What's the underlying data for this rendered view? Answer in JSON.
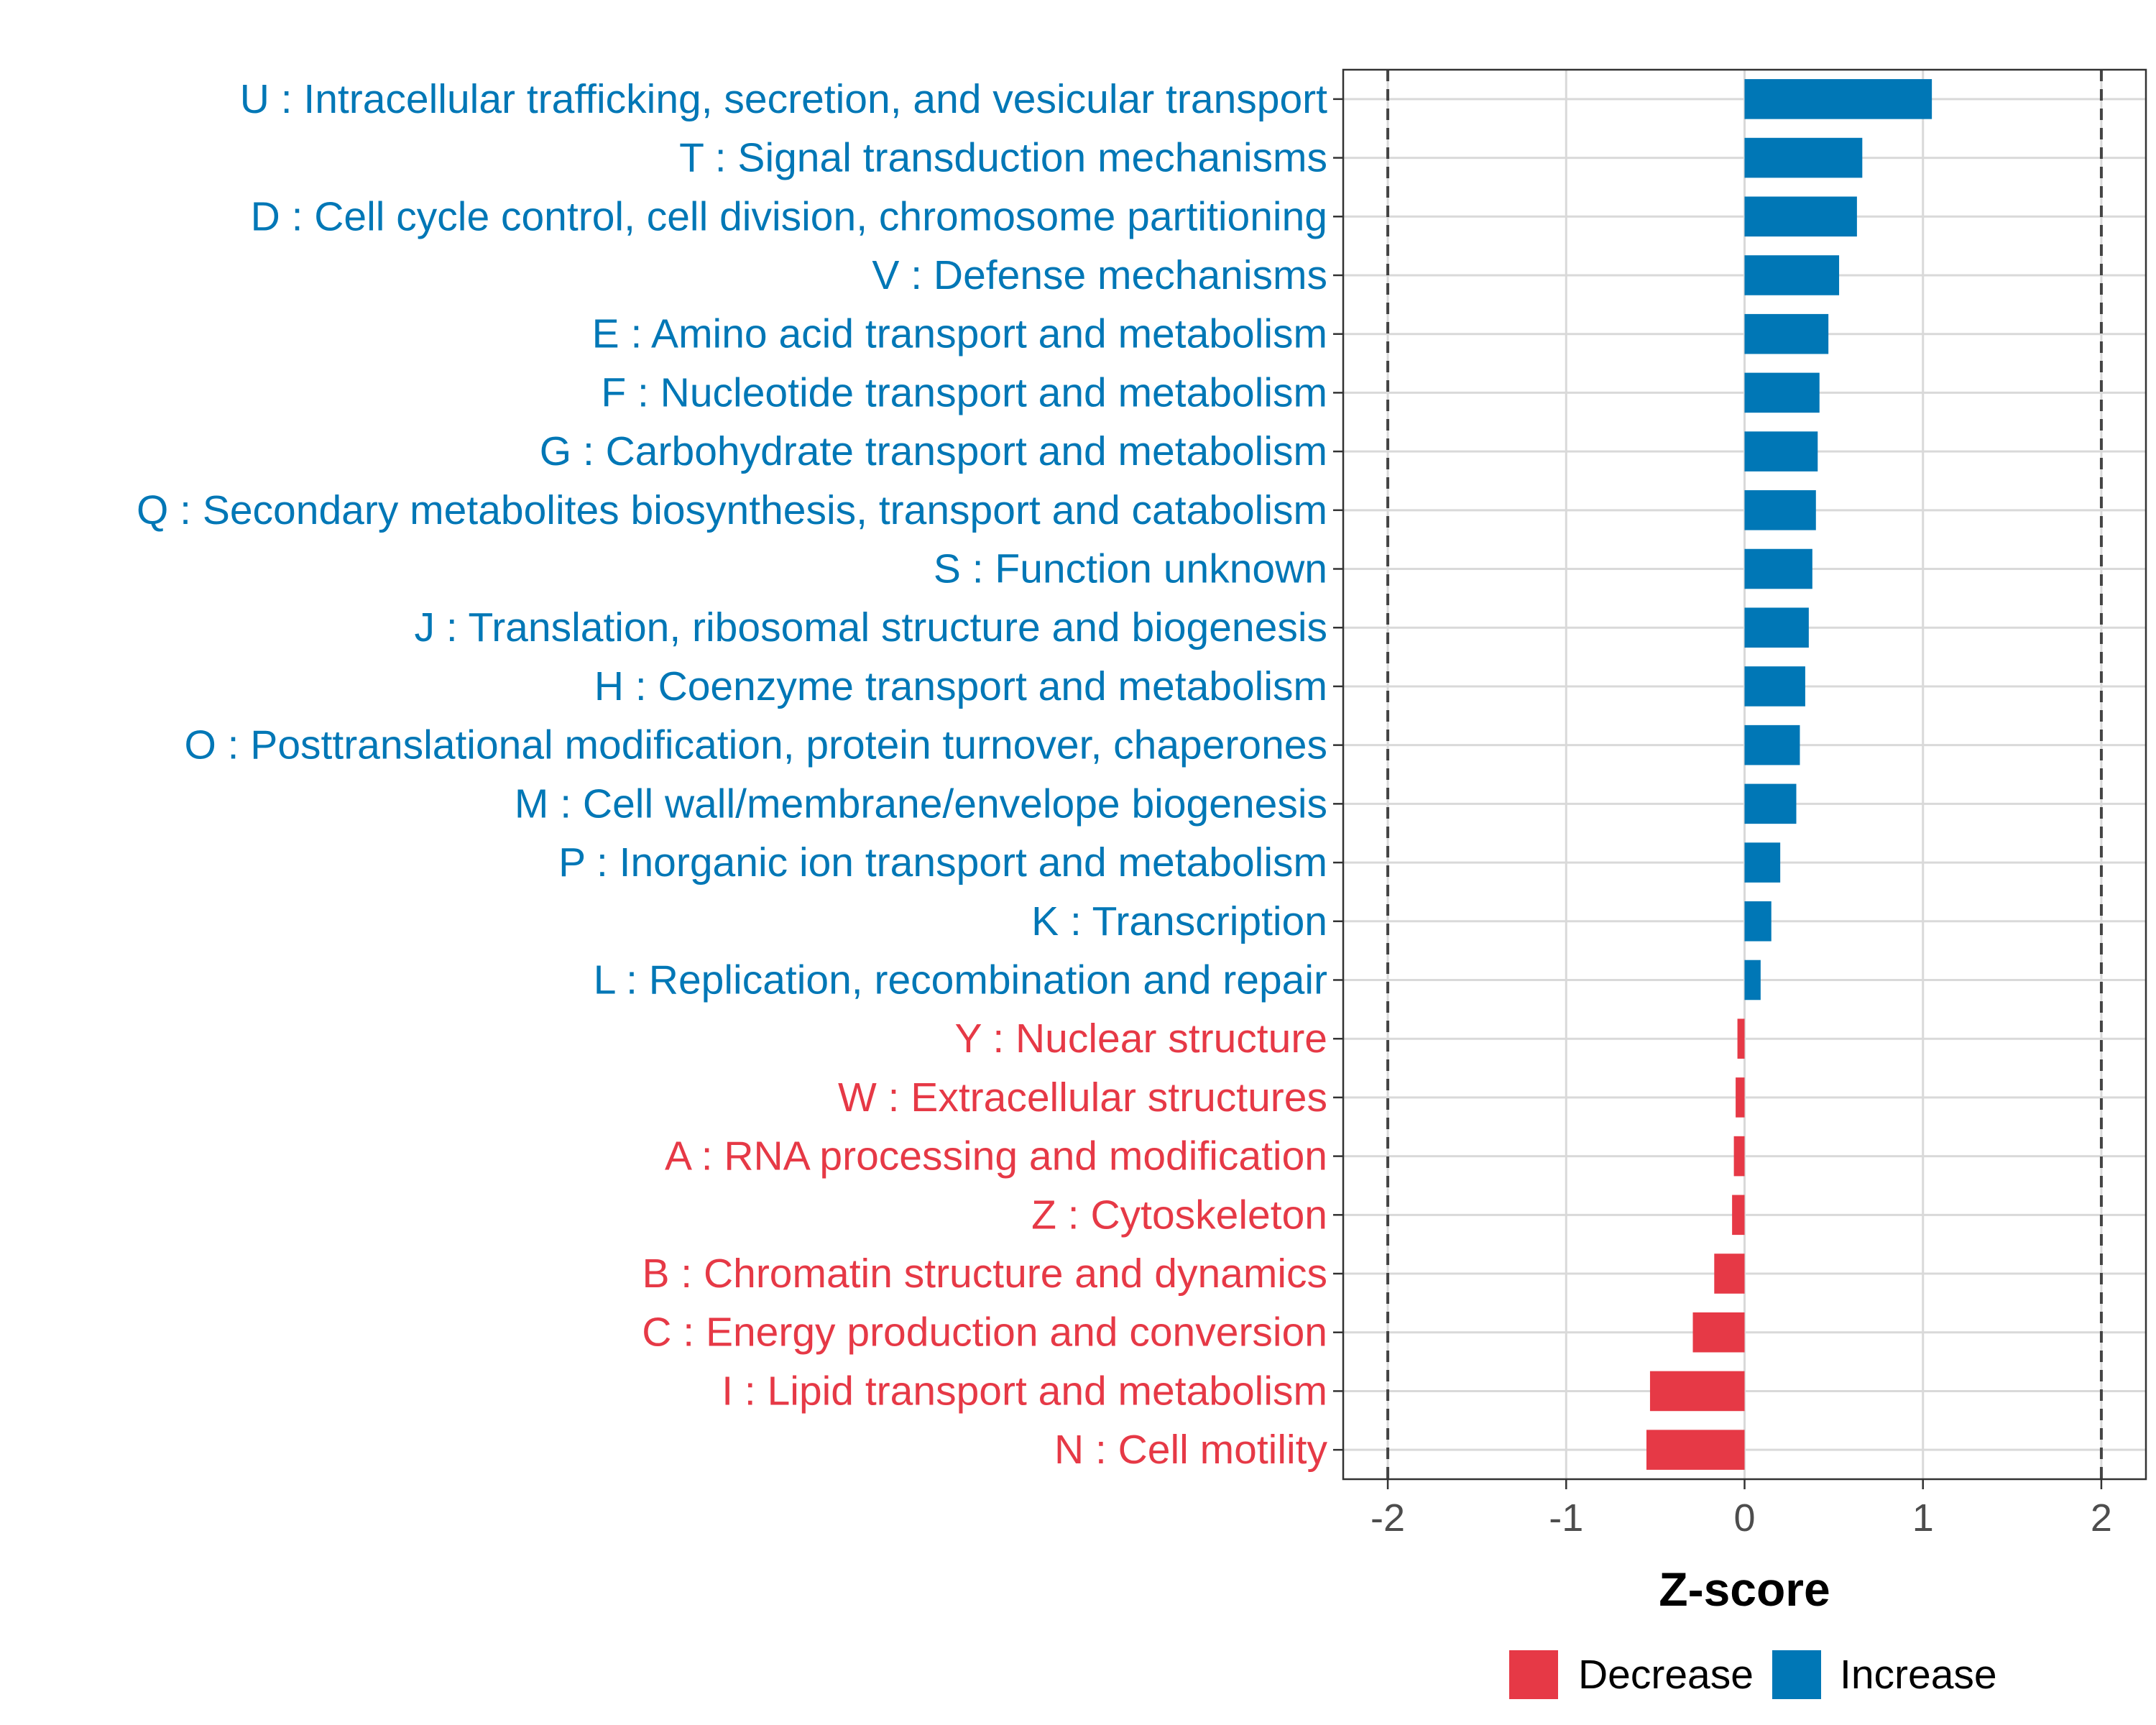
{
  "chart_data": {
    "type": "bar",
    "orientation": "horizontal",
    "title": "",
    "xlabel": "Z-score",
    "ylabel": "",
    "xlim": [
      -2.25,
      2.25
    ],
    "xticks": [
      -2,
      -1,
      0,
      1,
      2
    ],
    "xtick_labels": [
      "-2",
      "-1",
      "0",
      "1",
      "2"
    ],
    "reference_lines": [
      -2,
      2
    ],
    "grid": true,
    "legend_position": "bottom",
    "colors": {
      "Decrease": "#e63946",
      "Increase": "#0077b6"
    },
    "categories": [
      "U : Intracellular trafficking, secretion, and vesicular transport",
      "T : Signal transduction mechanisms",
      "D : Cell cycle control, cell division, chromosome partitioning",
      "V : Defense mechanisms",
      "E : Amino acid transport and metabolism",
      "F : Nucleotide transport and metabolism",
      "G : Carbohydrate transport and metabolism",
      "Q : Secondary metabolites biosynthesis, transport and catabolism",
      "S : Function unknown",
      "J : Translation, ribosomal structure and biogenesis",
      "H : Coenzyme transport and metabolism",
      "O : Posttranslational modification, protein turnover, chaperones",
      "M : Cell wall/membrane/envelope biogenesis",
      "P : Inorganic ion transport and metabolism",
      "K : Transcription",
      "L : Replication, recombination and repair",
      "Y : Nuclear structure",
      "W : Extracellular structures",
      "A : RNA processing and modification",
      "Z : Cytoskeleton",
      "B : Chromatin structure and dynamics",
      "C : Energy production and conversion",
      "I : Lipid transport and metabolism",
      "N : Cell motility"
    ],
    "values": [
      1.05,
      0.66,
      0.63,
      0.53,
      0.47,
      0.42,
      0.41,
      0.4,
      0.38,
      0.36,
      0.34,
      0.31,
      0.29,
      0.2,
      0.15,
      0.09,
      -0.04,
      -0.05,
      -0.06,
      -0.07,
      -0.17,
      -0.29,
      -0.53,
      -0.55
    ],
    "groups": [
      "Increase",
      "Increase",
      "Increase",
      "Increase",
      "Increase",
      "Increase",
      "Increase",
      "Increase",
      "Increase",
      "Increase",
      "Increase",
      "Increase",
      "Increase",
      "Increase",
      "Increase",
      "Increase",
      "Decrease",
      "Decrease",
      "Decrease",
      "Decrease",
      "Decrease",
      "Decrease",
      "Decrease",
      "Decrease"
    ],
    "legend": [
      "Decrease",
      "Increase"
    ]
  }
}
